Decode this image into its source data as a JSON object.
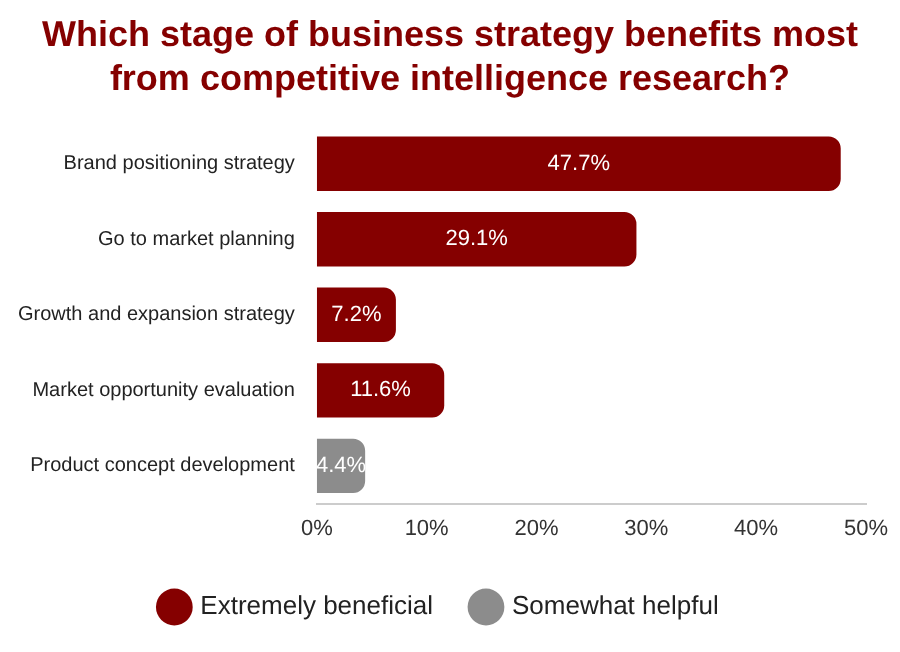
{
  "chart_data": {
    "type": "bar",
    "orientation": "horizontal",
    "title": "Which stage of business strategy benefits most from competitive intelligence research?",
    "categories": [
      "Brand positioning strategy",
      "Go to market planning",
      "Growth and expansion strategy",
      "Market opportunity evaluation",
      "Product concept development"
    ],
    "series": [
      {
        "name": "Extremely beneficial",
        "color": "#850000",
        "values": [
          47.7,
          29.1,
          7.2,
          11.6,
          null
        ],
        "value_labels": [
          "47.7%",
          "29.1%",
          "7.2%",
          "11.6%",
          null
        ]
      },
      {
        "name": "Somewhat helpful",
        "color": "#8c8c8c",
        "values": [
          null,
          null,
          null,
          null,
          4.4
        ],
        "value_labels": [
          null,
          null,
          null,
          null,
          "4.4%"
        ]
      }
    ],
    "xlim": [
      0,
      50
    ],
    "xticks": [
      {
        "value": 0,
        "label": "0%"
      },
      {
        "value": 10,
        "label": "10%"
      },
      {
        "value": 20,
        "label": "20%"
      },
      {
        "value": 30,
        "label": "30%"
      },
      {
        "value": 40,
        "label": "40%"
      },
      {
        "value": 50,
        "label": "50%"
      }
    ],
    "grid": false,
    "legend": "bottom",
    "marker": "circle"
  }
}
